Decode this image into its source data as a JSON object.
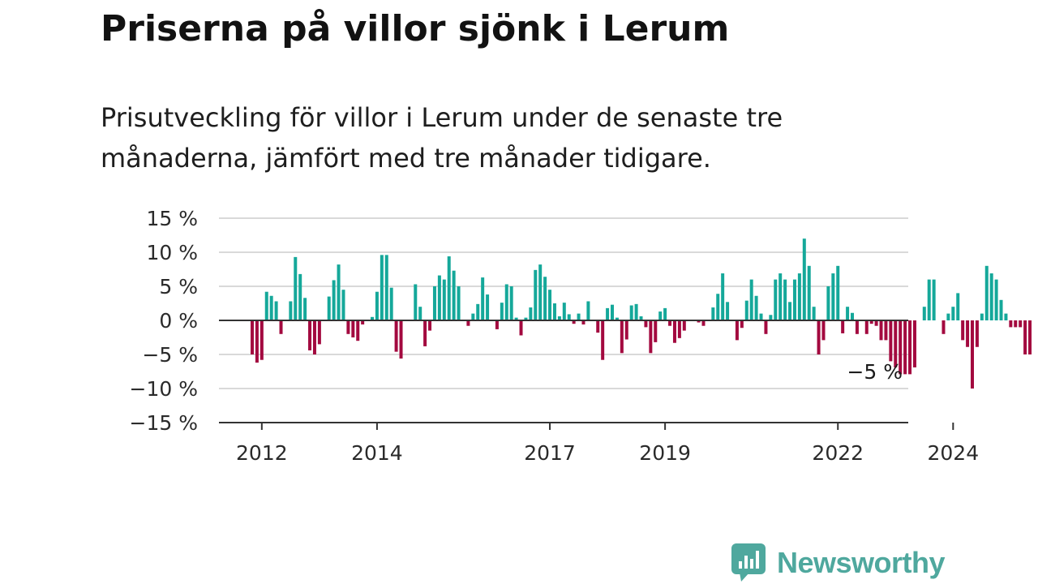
{
  "title": "Priserna på villor sjönk i Lerum",
  "subtitle": "Prisutveckling för villor i Lerum under de senaste tre månaderna, jämfört med tre månader tidigare.",
  "colors": {
    "positive": "#15a89a",
    "negative": "#a3093f",
    "grid": "#d9d9d9",
    "axis": "#333333"
  },
  "chart_data": {
    "type": "bar",
    "grid": true,
    "ylim": [
      -15,
      15
    ],
    "y_ticks": [
      15,
      10,
      5,
      0,
      -5,
      -10,
      -15
    ],
    "y_tick_labels": [
      "15 %",
      "10 %",
      "5 %",
      "0 %",
      "−5 %",
      "−10 %",
      "−15 %"
    ],
    "x_tick_labels": [
      {
        "label": "2012",
        "year": 2012
      },
      {
        "label": "2014",
        "year": 2014
      },
      {
        "label": "2017",
        "year": 2017
      },
      {
        "label": "2019",
        "year": 2019
      },
      {
        "label": "2022",
        "year": 2022
      },
      {
        "label": "2024",
        "year": 2024
      }
    ],
    "x_start": "2011-11",
    "annotation": {
      "label": "−5 %"
    },
    "values": [
      -5,
      -6.2,
      -5.8,
      4.2,
      3.6,
      2.8,
      -2,
      0,
      2.8,
      9.3,
      6.8,
      3.3,
      -4.4,
      -5,
      -3.5,
      0,
      3.5,
      5.9,
      8.2,
      4.5,
      -2,
      -2.5,
      -3,
      -0.6,
      0,
      0.5,
      4.2,
      9.6,
      9.6,
      4.8,
      -4.6,
      -5.6,
      0,
      0,
      5.3,
      2,
      -3.8,
      -1.5,
      5,
      6.6,
      6,
      9.4,
      7.3,
      5,
      0,
      -0.8,
      1,
      2.4,
      6.3,
      3.8,
      0,
      -1.3,
      2.6,
      5.3,
      5,
      0.4,
      -2.2,
      0.4,
      1.9,
      7.4,
      8.2,
      6.4,
      4.5,
      2.5,
      0.6,
      2.6,
      0.9,
      -0.5,
      1,
      -0.6,
      2.8,
      0,
      -1.8,
      -5.8,
      1.8,
      2.3,
      0.4,
      -4.8,
      -2.8,
      2.2,
      2.4,
      0.6,
      -1,
      -4.8,
      -3.2,
      1.3,
      1.8,
      -0.8,
      -3.3,
      -2.6,
      -1.5,
      0,
      0,
      -0.3,
      -0.8,
      0,
      1.9,
      3.9,
      6.9,
      2.7,
      0,
      -2.9,
      -1.1,
      2.9,
      6,
      3.6,
      1,
      -2,
      0.8,
      6,
      6.9,
      6,
      2.7,
      6,
      6.9,
      12,
      8,
      2,
      -5,
      -2.9,
      5,
      6.9,
      8,
      -1.9,
      2,
      1.1,
      -2,
      0,
      -2,
      -0.5,
      -0.8,
      -2.9,
      -2.9,
      -6,
      -6.9,
      -7.9,
      -7.9,
      -7.9,
      -6.9,
      0,
      2,
      6,
      6,
      0,
      -2,
      1,
      2,
      4,
      -2.9,
      -3.9,
      -10,
      -3.9,
      1,
      8,
      6.9,
      6,
      3,
      1,
      -1,
      -1,
      -1,
      -5,
      -5
    ]
  },
  "footer": {
    "brand": "Newsworthy"
  }
}
